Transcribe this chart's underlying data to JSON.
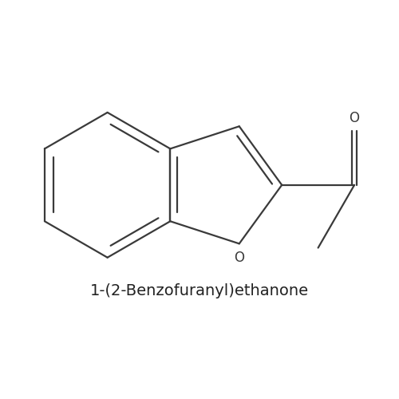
{
  "title": "1-(2-Benzofuranyl)ethanone",
  "title_fontsize": 14,
  "bg_color": "#ffffff",
  "line_color": "#3a3a3a",
  "line_width": 1.6,
  "fig_size": [
    5.0,
    5.0
  ],
  "dpi": 100,
  "label_O_ketone": "O",
  "label_O_ring": "O"
}
